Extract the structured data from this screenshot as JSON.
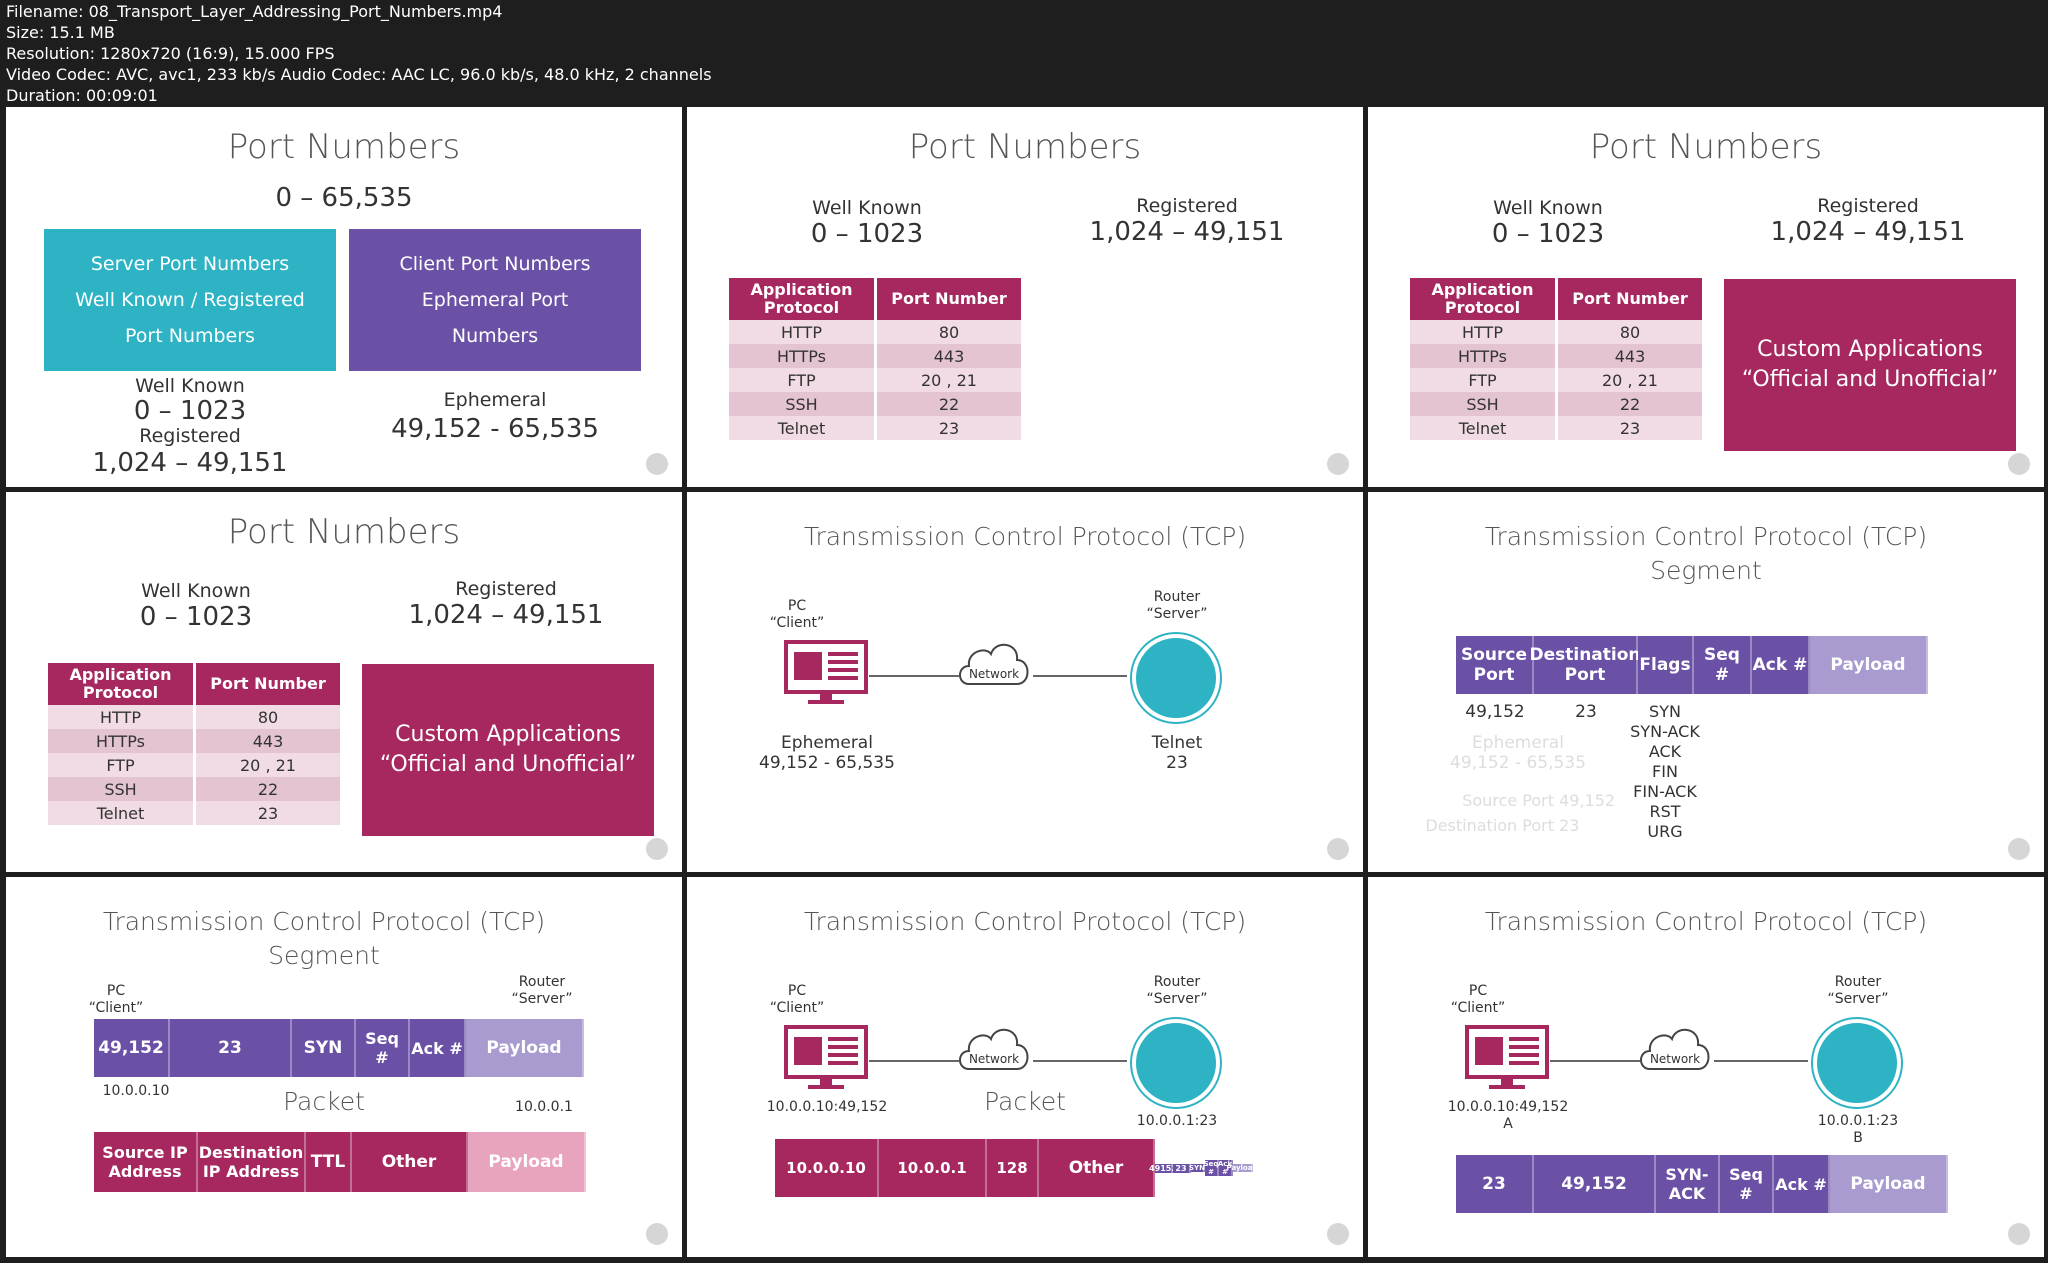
{
  "meta": {
    "filename": "Filename: 08_Transport_Layer_Addressing_Port_Numbers.mp4",
    "size": "Size: 15.1 MB",
    "resolution": "Resolution: 1280x720 (16:9), 15.000 FPS",
    "codec": "Video Codec: AVC, avc1, 233 kb/s Audio Codec: AAC LC, 96.0 kb/s, 48.0 kHz, 2 channels",
    "duration": "Duration: 00:09:01"
  },
  "colors": {
    "teal": "#2eb3c4",
    "purple": "#6a51a6",
    "maroon": "#a6285e",
    "lavender": "#a99bd0",
    "pink": "#e8a4bf"
  },
  "port": {
    "title": "Port Numbers",
    "range": "0 – 65,535",
    "server_box": [
      "Server Port Numbers",
      "Well Known / Registered",
      "Port Numbers"
    ],
    "client_box": [
      "Client Port Numbers",
      "Ephemeral Port",
      "Numbers"
    ],
    "well_known": "Well Known",
    "well_known_range": "0 – 1023",
    "registered": "Registered",
    "registered_range": "1,024 – 49,151",
    "ephemeral": "Ephemeral",
    "ephemeral_range": "49,152 - 65,535",
    "custom_1": "Custom Applications",
    "custom_2": "“Official and Unofficial”",
    "table_head": [
      "Application Protocol",
      "Port Number"
    ],
    "table_rows": [
      [
        "HTTP",
        "80"
      ],
      [
        "HTTPs",
        "443"
      ],
      [
        "FTP",
        "20 , 21"
      ],
      [
        "SSH",
        "22"
      ],
      [
        "Telnet",
        "23"
      ]
    ]
  },
  "tcp": {
    "title": "Transmission Control Protocol (TCP)",
    "segment": "Segment",
    "packet": "Packet",
    "pc": "PC",
    "client": "“Client”",
    "router": "Router",
    "server": "“Server”",
    "network": "Network",
    "ephemeral": "Ephemeral",
    "ephemeral_range": "49,152 - 65,535",
    "telnet": "Telnet",
    "telnet_port": "23",
    "seg_headers": [
      "Source Port",
      "Destination Port",
      "Flags",
      "Seq #",
      "Ack #",
      "Payload"
    ],
    "seg_values": [
      "49,152",
      "23"
    ],
    "flags": [
      "SYN",
      "SYN-ACK",
      "ACK",
      "FIN",
      "FIN-ACK",
      "RST",
      "URG"
    ],
    "faded_src": "Source Port",
    "faded_dst": "Destination Port",
    "faded_src_val": "49,152",
    "faded_dst_val": "23",
    "seg7": [
      "49,152",
      "23",
      "SYN",
      "Seq #",
      "Ack #",
      "Payload"
    ],
    "ip_client": "10.0.0.10",
    "ip_server": "10.0.0.1",
    "pkt7": [
      "Source IP Address",
      "Destination IP Address",
      "TTL",
      "Other",
      "Payload"
    ],
    "sock_client": "10.0.0.10:49,152",
    "sock_server": "10.0.0.1:23",
    "pkt8": [
      "10.0.0.10",
      "10.0.0.1",
      "128",
      "Other"
    ],
    "pkt8_mini": [
      "49152",
      "23",
      "SYN",
      "Seq #",
      "Ack #",
      "Payload"
    ],
    "label_a": "A",
    "label_b": "B",
    "seg9": [
      "23",
      "49,152",
      "SYN- ACK",
      "Seq #",
      "Ack #",
      "Payload"
    ]
  }
}
